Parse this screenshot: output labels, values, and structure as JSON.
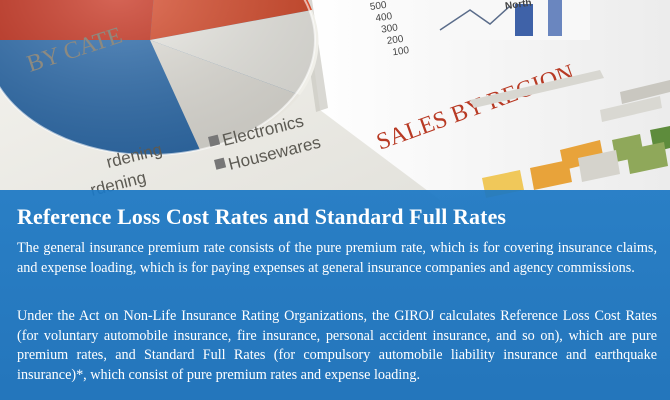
{
  "background": {
    "pie_label": "BY CATE",
    "sales_by_region": "SALES BY REGION",
    "legend_items": [
      {
        "label": "Electronics",
        "icon": "square-marker"
      },
      {
        "label": "Housewares",
        "icon": "square-marker"
      }
    ],
    "partial_labels": [
      "rdening",
      "rdening"
    ],
    "axis_ticks": [
      "500",
      "400",
      "300",
      "200",
      "100"
    ],
    "axis_category": "North",
    "colors": {
      "overlay": "#1c78c4",
      "pie_red": "#c8321e",
      "pie_blue": "#2f6fb0",
      "bar_orange": "#e8a33a",
      "bar_yellow": "#f0c85a"
    }
  },
  "content": {
    "title": "Reference Loss Cost Rates and Standard Full Rates",
    "paragraph_1": "The general insurance premium rate consists of the pure premium rate, which is for covering insurance claims, and expense loading, which is for paying expenses at general insurance companies and agency commissions.",
    "paragraph_2": "Under the Act on Non-Life Insurance Rating Organizations, the GIROJ calculates Reference Loss Cost Rates (for voluntary automobile insurance, fire insurance, personal accident insurance, and so on), which are pure premium rates, and Standard Full Rates (for compulsory automobile liability insurance and earthquake insurance)*, which consist of pure premium rates and expense loading."
  }
}
